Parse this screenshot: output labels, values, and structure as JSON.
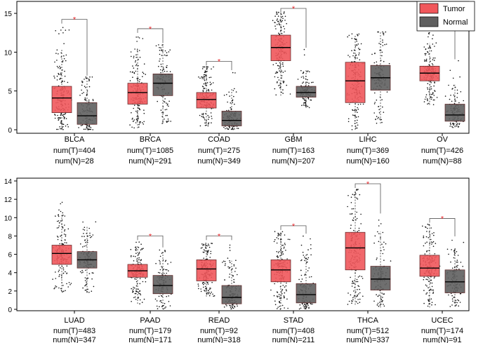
{
  "chart_data": [
    {
      "type": "boxplot",
      "panel": "top",
      "ylim": [
        0,
        16
      ],
      "yticks": [
        0,
        5,
        10,
        15
      ],
      "legend": {
        "position": "top-right",
        "entries": [
          {
            "name": "Tumor",
            "color": "#F0575B"
          },
          {
            "name": "Normal",
            "color": "#5F5F5F"
          }
        ]
      },
      "categories": [
        {
          "name": "BLCA",
          "num_t": "num(T)=404",
          "num_n": "num(N)=28",
          "significant": true,
          "tumor": {
            "min": 0.0,
            "q1": 2.2,
            "median": 4.1,
            "q3": 5.6,
            "max": 10.4,
            "top": 13.5
          },
          "normal": {
            "min": 0.0,
            "q1": 0.7,
            "median": 1.8,
            "q3": 3.5,
            "max": 6.8,
            "top": 6.8
          }
        },
        {
          "name": "BRCA",
          "num_t": "num(T)=1085",
          "num_n": "num(N)=291",
          "significant": true,
          "tumor": {
            "min": 0.2,
            "q1": 3.3,
            "median": 4.8,
            "q3": 6.0,
            "max": 10.2,
            "top": 12.3
          },
          "normal": {
            "min": 0.8,
            "q1": 4.4,
            "median": 6.0,
            "q3": 7.2,
            "max": 10.9,
            "top": 11.0
          }
        },
        {
          "name": "COAD",
          "num_t": "num(T)=275",
          "num_n": "num(N)=349",
          "significant": true,
          "tumor": {
            "min": 0.5,
            "q1": 2.8,
            "median": 3.9,
            "q3": 4.8,
            "max": 8.1,
            "top": 8.1
          },
          "normal": {
            "min": 0.0,
            "q1": 0.5,
            "median": 1.2,
            "q3": 2.4,
            "max": 5.3,
            "top": 7.5
          }
        },
        {
          "name": "GBM",
          "num_t": "num(T)=163",
          "num_n": "num(N)=207",
          "significant": true,
          "tumor": {
            "min": 4.4,
            "q1": 8.9,
            "median": 10.6,
            "q3": 12.2,
            "max": 15.1,
            "top": 15.2
          },
          "normal": {
            "min": 2.8,
            "q1": 4.2,
            "median": 4.8,
            "q3": 5.6,
            "max": 7.7,
            "top": 10.4
          }
        },
        {
          "name": "LIHC",
          "num_t": "num(T)=369",
          "num_n": "num(N)=160",
          "significant": false,
          "tumor": {
            "min": 0.0,
            "q1": 3.5,
            "median": 6.3,
            "q3": 8.7,
            "max": 12.2,
            "top": 12.4
          },
          "normal": {
            "min": 0.8,
            "q1": 5.1,
            "median": 6.7,
            "q3": 8.3,
            "max": 12.6,
            "top": 12.6
          }
        },
        {
          "name": "OV",
          "num_t": "num(T)=426",
          "num_n": "num(N)=88",
          "significant": true,
          "tumor": {
            "min": 3.2,
            "q1": 6.3,
            "median": 7.3,
            "q3": 8.2,
            "max": 11.2,
            "top": 12.8
          },
          "normal": {
            "min": 0.3,
            "q1": 1.1,
            "median": 1.9,
            "q3": 3.3,
            "max": 5.8,
            "top": 8.9
          }
        }
      ]
    },
    {
      "type": "boxplot",
      "panel": "bottom",
      "ylim": [
        0,
        14
      ],
      "yticks": [
        0,
        2,
        4,
        6,
        8,
        10,
        12,
        14
      ],
      "categories": [
        {
          "name": "LUAD",
          "num_t": "num(T)=483",
          "num_n": "num(N)=347",
          "significant": false,
          "tumor": {
            "min": 1.9,
            "q1": 4.9,
            "median": 6.1,
            "q3": 7.0,
            "max": 10.3,
            "top": 12.2
          },
          "normal": {
            "min": 1.8,
            "q1": 4.5,
            "median": 5.4,
            "q3": 6.3,
            "max": 9.0,
            "top": 9.9
          }
        },
        {
          "name": "PAAD",
          "num_t": "num(T)=179",
          "num_n": "num(N)=171",
          "significant": true,
          "tumor": {
            "min": 0.6,
            "q1": 3.5,
            "median": 4.2,
            "q3": 4.9,
            "max": 6.9,
            "top": 7.4
          },
          "normal": {
            "min": 0.0,
            "q1": 1.7,
            "median": 2.6,
            "q3": 3.7,
            "max": 6.3,
            "top": 6.6
          }
        },
        {
          "name": "READ",
          "num_t": "num(T)=92",
          "num_n": "num(N)=318",
          "significant": true,
          "tumor": {
            "min": 1.4,
            "q1": 3.1,
            "median": 4.4,
            "q3": 5.4,
            "max": 7.2,
            "top": 7.2
          },
          "normal": {
            "min": 0.0,
            "q1": 0.6,
            "median": 1.3,
            "q3": 2.6,
            "max": 5.3,
            "top": 7.4
          }
        },
        {
          "name": "STAD",
          "num_t": "num(T)=408",
          "num_n": "num(N)=211",
          "significant": true,
          "tumor": {
            "min": 0.0,
            "q1": 3.0,
            "median": 4.3,
            "q3": 5.4,
            "max": 8.2,
            "top": 8.5
          },
          "normal": {
            "min": 0.0,
            "q1": 0.7,
            "median": 1.6,
            "q3": 2.8,
            "max": 6.0,
            "top": 8.1
          }
        },
        {
          "name": "THCA",
          "num_t": "num(T)=512",
          "num_n": "num(N)=337",
          "significant": true,
          "tumor": {
            "min": 0.5,
            "q1": 4.3,
            "median": 6.7,
            "q3": 8.4,
            "max": 13.0,
            "top": 13.1
          },
          "normal": {
            "min": 0.2,
            "q1": 2.1,
            "median": 3.3,
            "q3": 4.7,
            "max": 8.5,
            "top": 10.3
          }
        },
        {
          "name": "UCEC",
          "num_t": "num(T)=174",
          "num_n": "num(N)=91",
          "significant": true,
          "tumor": {
            "min": 0.2,
            "q1": 3.6,
            "median": 4.5,
            "q3": 5.9,
            "max": 9.2,
            "top": 9.3
          },
          "normal": {
            "min": 0.3,
            "q1": 1.8,
            "median": 3.0,
            "q3": 4.3,
            "max": 6.6,
            "top": 7.8
          }
        }
      ]
    }
  ],
  "colors": {
    "tumor_fill": "#F0575B",
    "normal_fill": "#5F5F5F",
    "box_stroke": "#5A1E1E",
    "significance": "#E8262A",
    "points": "#111111"
  },
  "significance_marker": "*"
}
